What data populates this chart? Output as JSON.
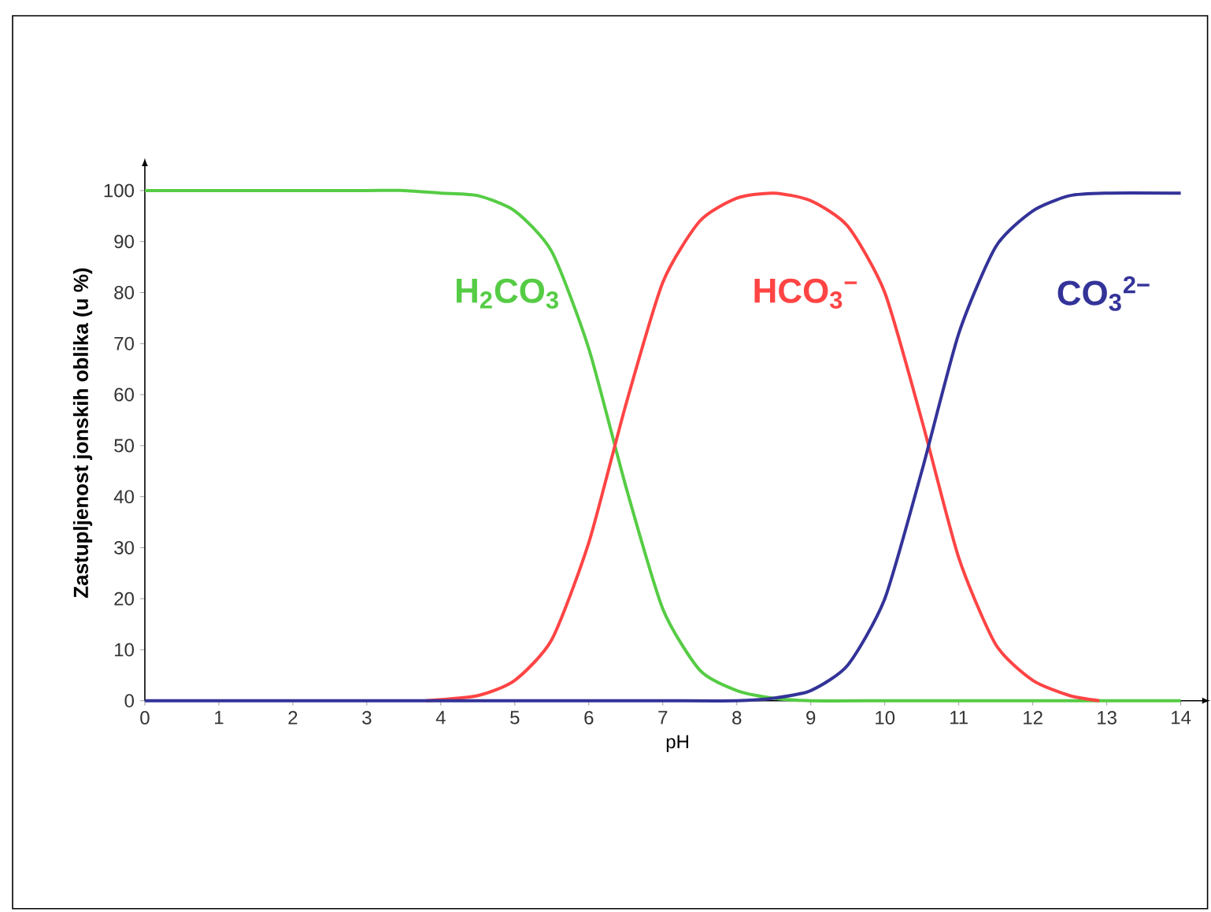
{
  "chart_data": {
    "type": "line",
    "xlabel": "pH",
    "ylabel": "Zastupljenost jonskih oblika (u %)",
    "xlim": [
      0,
      14.4
    ],
    "ylim": [
      0,
      105
    ],
    "xticks": [
      0,
      1,
      2,
      3,
      4,
      5,
      6,
      7,
      8,
      9,
      10,
      11,
      12,
      13,
      14
    ],
    "yticks": [
      0,
      10,
      20,
      30,
      40,
      50,
      60,
      70,
      80,
      90,
      100
    ],
    "marker": "none",
    "line_style": "solid",
    "series": [
      {
        "name": "H$_{2}$CO$_{3}$",
        "color": "#55cc44",
        "x": [
          0,
          1,
          2,
          3,
          3.5,
          4,
          4.5,
          5,
          5.5,
          6,
          6.5,
          7,
          7.5,
          8,
          8.5,
          9,
          10,
          11,
          12,
          13,
          14
        ],
        "values": [
          100,
          100,
          100,
          100,
          100,
          99.5,
          99,
          96,
          88,
          69,
          42,
          18,
          6,
          2,
          0.5,
          0,
          0,
          0,
          0,
          0,
          0
        ]
      },
      {
        "name": "HCO$_{3}$$^{−}$",
        "color": "#ff4444",
        "x": [
          3.8,
          4.5,
          5,
          5.5,
          6,
          6.5,
          7,
          7.5,
          8,
          8.5,
          9,
          9.5,
          10,
          10.5,
          11,
          11.5,
          12,
          12.5,
          12.9
        ],
        "values": [
          0,
          1,
          4,
          12,
          31,
          58,
          82,
          94,
          98.5,
          99.5,
          98,
          93,
          80,
          55,
          28,
          11,
          4,
          1,
          0
        ]
      },
      {
        "name": "CO$_{3}$$^{2−}$",
        "color": "#333399",
        "x": [
          0,
          1,
          2,
          3,
          4,
          5,
          6,
          7,
          8,
          8.5,
          9,
          9.5,
          10,
          10.5,
          11,
          11.5,
          12,
          12.5,
          13,
          14
        ],
        "values": [
          0,
          0,
          0,
          0,
          0,
          0,
          0,
          0,
          0,
          0.5,
          2,
          7,
          20,
          45,
          72,
          89,
          96,
          99,
          99.5,
          99.5
        ]
      }
    ]
  }
}
